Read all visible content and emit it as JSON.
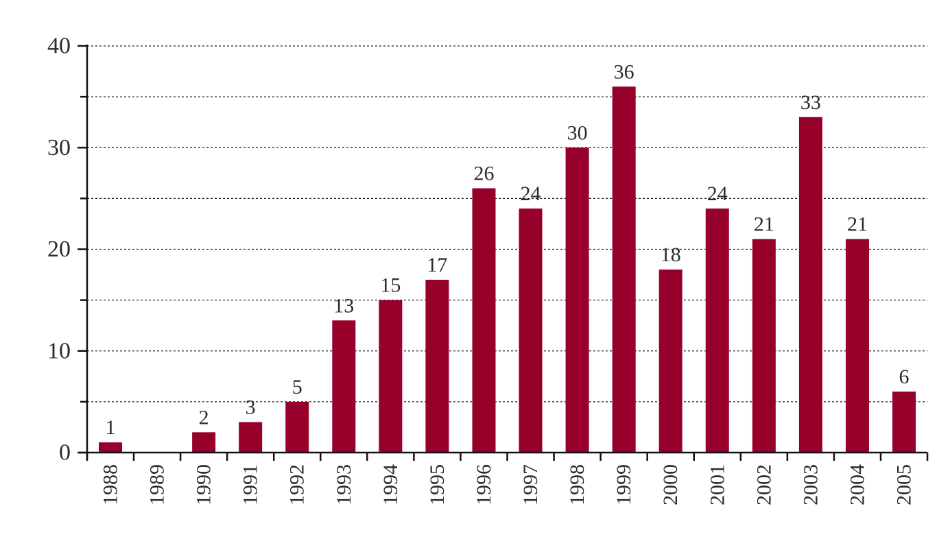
{
  "chart_data": {
    "type": "bar",
    "categories": [
      "1988",
      "1989",
      "1990",
      "1991",
      "1992",
      "1993",
      "1994",
      "1995",
      "1996",
      "1997",
      "1998",
      "1999",
      "2000",
      "2001",
      "2002",
      "2003",
      "2004",
      "2005"
    ],
    "values": [
      1,
      0,
      2,
      3,
      5,
      13,
      15,
      17,
      26,
      24,
      30,
      36,
      18,
      24,
      21,
      33,
      21,
      6
    ],
    "data_labels": [
      "1",
      "",
      "2",
      "3",
      "5",
      "13",
      "15",
      "17",
      "26",
      "24",
      "30",
      "36",
      "18",
      "24",
      "21",
      "33",
      "21",
      "6"
    ],
    "title": "",
    "xlabel": "",
    "ylabel": "",
    "ylim": [
      0,
      40
    ],
    "y_ticks": [
      0,
      10,
      20,
      30,
      40
    ],
    "y_tick_labels": [
      "0",
      "10",
      "20",
      "30",
      "40"
    ],
    "y_minor_step": 5,
    "grid": "dotted horizontal",
    "legend": "none",
    "bar_color": "#97002a",
    "axis_color": "#111111",
    "grid_color": "#222222"
  }
}
